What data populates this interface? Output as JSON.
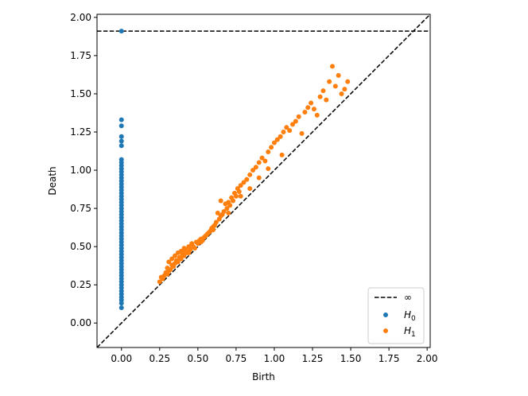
{
  "chart_data": {
    "type": "scatter",
    "xlabel": "Birth",
    "ylabel": "Death",
    "xlim": [
      -0.16,
      2.02
    ],
    "ylim": [
      -0.16,
      2.02
    ],
    "x_ticks": [
      "0.00",
      "0.25",
      "0.50",
      "0.75",
      "1.00",
      "1.25",
      "1.50",
      "1.75",
      "2.00"
    ],
    "y_ticks": [
      "0.00",
      "0.25",
      "0.50",
      "0.75",
      "1.00",
      "1.25",
      "1.50",
      "1.75",
      "2.00"
    ],
    "grid": false,
    "legend_position": "lower-right",
    "infinity_line": {
      "label": "∞",
      "y": 1.91,
      "color": "#000000",
      "style": "dashed"
    },
    "diagonal": {
      "style": "dashed",
      "color": "#000000"
    },
    "series": [
      {
        "name": "H0",
        "label_base": "H",
        "label_sub": "0",
        "color": "#1f77b4",
        "points": [
          [
            0,
            1.91
          ],
          [
            0,
            1.33
          ],
          [
            0,
            1.29
          ],
          [
            0,
            1.22
          ],
          [
            0,
            1.19
          ],
          [
            0,
            1.16
          ],
          [
            0,
            1.07
          ],
          [
            0,
            1.05
          ],
          [
            0,
            1.03
          ],
          [
            0,
            1.01
          ],
          [
            0,
            0.99
          ],
          [
            0,
            0.97
          ],
          [
            0,
            0.95
          ],
          [
            0,
            0.93
          ],
          [
            0,
            0.91
          ],
          [
            0,
            0.89
          ],
          [
            0,
            0.87
          ],
          [
            0,
            0.85
          ],
          [
            0,
            0.83
          ],
          [
            0,
            0.81
          ],
          [
            0,
            0.79
          ],
          [
            0,
            0.77
          ],
          [
            0,
            0.75
          ],
          [
            0,
            0.73
          ],
          [
            0,
            0.71
          ],
          [
            0,
            0.69
          ],
          [
            0,
            0.67
          ],
          [
            0,
            0.65
          ],
          [
            0,
            0.63
          ],
          [
            0,
            0.61
          ],
          [
            0,
            0.59
          ],
          [
            0,
            0.57
          ],
          [
            0,
            0.55
          ],
          [
            0,
            0.53
          ],
          [
            0,
            0.51
          ],
          [
            0,
            0.49
          ],
          [
            0,
            0.47
          ],
          [
            0,
            0.45
          ],
          [
            0,
            0.43
          ],
          [
            0,
            0.41
          ],
          [
            0,
            0.39
          ],
          [
            0,
            0.37
          ],
          [
            0,
            0.35
          ],
          [
            0,
            0.33
          ],
          [
            0,
            0.31
          ],
          [
            0,
            0.29
          ],
          [
            0,
            0.27
          ],
          [
            0,
            0.25
          ],
          [
            0,
            0.23
          ],
          [
            0,
            0.21
          ],
          [
            0,
            0.19
          ],
          [
            0,
            0.17
          ],
          [
            0,
            0.15
          ],
          [
            0,
            0.13
          ],
          [
            0,
            0.1
          ]
        ]
      },
      {
        "name": "H1",
        "label_base": "H",
        "label_sub": "1",
        "color": "#ff7f0e",
        "points": [
          [
            0.25,
            0.27
          ],
          [
            0.26,
            0.3
          ],
          [
            0.27,
            0.29
          ],
          [
            0.28,
            0.31
          ],
          [
            0.29,
            0.33
          ],
          [
            0.3,
            0.32
          ],
          [
            0.3,
            0.36
          ],
          [
            0.31,
            0.34
          ],
          [
            0.31,
            0.4
          ],
          [
            0.32,
            0.35
          ],
          [
            0.33,
            0.38
          ],
          [
            0.33,
            0.42
          ],
          [
            0.34,
            0.37
          ],
          [
            0.35,
            0.39
          ],
          [
            0.35,
            0.44
          ],
          [
            0.36,
            0.41
          ],
          [
            0.37,
            0.4
          ],
          [
            0.37,
            0.46
          ],
          [
            0.38,
            0.43
          ],
          [
            0.39,
            0.42
          ],
          [
            0.39,
            0.47
          ],
          [
            0.4,
            0.45
          ],
          [
            0.41,
            0.44
          ],
          [
            0.41,
            0.49
          ],
          [
            0.42,
            0.47
          ],
          [
            0.43,
            0.46
          ],
          [
            0.44,
            0.5
          ],
          [
            0.45,
            0.48
          ],
          [
            0.46,
            0.52
          ],
          [
            0.47,
            0.5
          ],
          [
            0.48,
            0.49
          ],
          [
            0.49,
            0.53
          ],
          [
            0.5,
            0.52
          ],
          [
            0.51,
            0.54
          ],
          [
            0.52,
            0.55
          ],
          [
            0.53,
            0.54
          ],
          [
            0.54,
            0.56
          ],
          [
            0.55,
            0.57
          ],
          [
            0.56,
            0.58
          ],
          [
            0.57,
            0.59
          ],
          [
            0.58,
            0.6
          ],
          [
            0.59,
            0.62
          ],
          [
            0.6,
            0.63
          ],
          [
            0.61,
            0.64
          ],
          [
            0.62,
            0.66
          ],
          [
            0.63,
            0.72
          ],
          [
            0.64,
            0.68
          ],
          [
            0.65,
            0.7
          ],
          [
            0.65,
            0.8
          ],
          [
            0.66,
            0.71
          ],
          [
            0.67,
            0.73
          ],
          [
            0.68,
            0.78
          ],
          [
            0.69,
            0.75
          ],
          [
            0.7,
            0.79
          ],
          [
            0.71,
            0.77
          ],
          [
            0.72,
            0.82
          ],
          [
            0.73,
            0.8
          ],
          [
            0.74,
            0.85
          ],
          [
            0.75,
            0.83
          ],
          [
            0.76,
            0.88
          ],
          [
            0.77,
            0.86
          ],
          [
            0.78,
            0.9
          ],
          [
            0.8,
            0.92
          ],
          [
            0.82,
            0.94
          ],
          [
            0.84,
            0.97
          ],
          [
            0.86,
            1.0
          ],
          [
            0.88,
            1.02
          ],
          [
            0.9,
            1.05
          ],
          [
            0.92,
            1.08
          ],
          [
            0.94,
            1.06
          ],
          [
            0.96,
            1.12
          ],
          [
            0.98,
            1.15
          ],
          [
            1.0,
            1.18
          ],
          [
            1.02,
            1.2
          ],
          [
            1.04,
            1.22
          ],
          [
            1.06,
            1.25
          ],
          [
            1.08,
            1.28
          ],
          [
            1.1,
            1.26
          ],
          [
            1.12,
            1.3
          ],
          [
            1.14,
            1.32
          ],
          [
            1.16,
            1.35
          ],
          [
            1.18,
            1.24
          ],
          [
            1.2,
            1.38
          ],
          [
            1.22,
            1.41
          ],
          [
            1.24,
            1.44
          ],
          [
            1.26,
            1.4
          ],
          [
            1.28,
            1.36
          ],
          [
            1.3,
            1.48
          ],
          [
            1.32,
            1.52
          ],
          [
            1.34,
            1.46
          ],
          [
            1.36,
            1.58
          ],
          [
            1.38,
            1.68
          ],
          [
            1.4,
            1.55
          ],
          [
            1.42,
            1.62
          ],
          [
            1.44,
            1.5
          ],
          [
            1.46,
            1.53
          ],
          [
            1.48,
            1.58
          ],
          [
            0.42,
            0.48
          ],
          [
            0.44,
            0.46
          ],
          [
            0.52,
            0.53
          ],
          [
            0.6,
            0.61
          ],
          [
            0.7,
            0.72
          ],
          [
            0.78,
            0.83
          ],
          [
            0.84,
            0.88
          ],
          [
            0.9,
            0.95
          ],
          [
            0.96,
            1.01
          ],
          [
            1.05,
            1.1
          ]
        ]
      }
    ]
  }
}
